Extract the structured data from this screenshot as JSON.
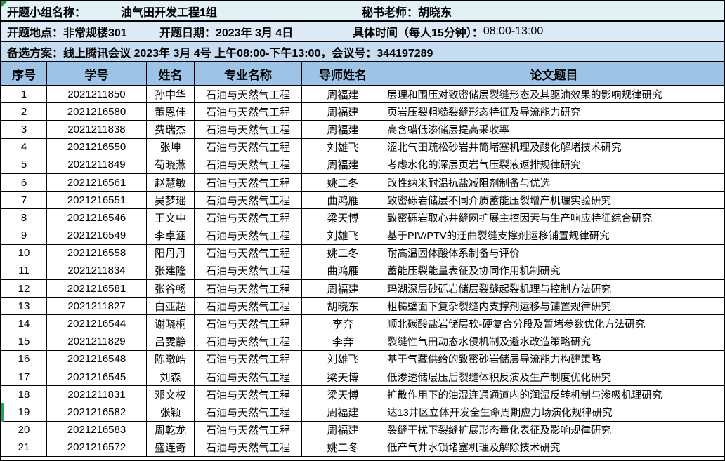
{
  "colors": {
    "header_bg": "#9dc3e6",
    "info_row1_bg": "#e1f1f6",
    "info_row2_bg": "#dce9f6",
    "info_row3_bg": "#c5dcf1",
    "selection_green": "#21a366",
    "corner_flag_green": "#1f9554",
    "grid_border": "#000000"
  },
  "info": {
    "row1": {
      "group_label": "开题小组名称：",
      "group_name": "油气田开发工程1组",
      "secretary": "秘书老师：胡晓东"
    },
    "row2": {
      "location": "开题地点：非常规楼301",
      "date": "开题日期：2023年 3月 4日",
      "time_label": "具体时间（每人15分钟）：",
      "time_value": "08:00-13:00"
    },
    "row3": {
      "backup_plan": "备选方案：线上腾讯会议   2023年 3月 4号 上午08:00-下午13:00，会议号：344197289"
    }
  },
  "table": {
    "columns": {
      "seq": "序号",
      "id": "学号",
      "name": "姓名",
      "major": "专业名称",
      "advisor": "导师姓名",
      "title": "论文题目"
    },
    "selected_row_seq": "19",
    "rows": [
      {
        "seq": "1",
        "id": "2021211850",
        "name": "孙中华",
        "major": "石油与天然气工程",
        "advisor": "周福建",
        "title": "层理和围压对致密储层裂缝形态及其驱油效果的影响规律研究"
      },
      {
        "seq": "2",
        "id": "2021216580",
        "name": "董恩佳",
        "major": "石油与天然气工程",
        "advisor": "周福建",
        "title": "页岩压裂粗糙裂缝形态特征及导流能力研究"
      },
      {
        "seq": "3",
        "id": "2021211838",
        "name": "费瑞杰",
        "major": "石油与天然气工程",
        "advisor": "周福建",
        "title": "高含蜡低渗储层提高采收率"
      },
      {
        "seq": "4",
        "id": "2021216550",
        "name": "张坤",
        "major": "石油与天然气工程",
        "advisor": "刘雄飞",
        "title": "涩北气田疏松砂岩井筒堵塞机理及酸化解堵技术研究"
      },
      {
        "seq": "5",
        "id": "2021211849",
        "name": "苟晓燕",
        "major": "石油与天然气工程",
        "advisor": "周福建",
        "title": "考虑水化的深层页岩气压裂液返排规律研究"
      },
      {
        "seq": "6",
        "id": "2021216561",
        "name": "赵慧敏",
        "major": "石油与天然气工程",
        "advisor": "姚二冬",
        "title": "改性纳米耐温抗盐减阻剂制备与优选"
      },
      {
        "seq": "7",
        "id": "2021216551",
        "name": "吴梦瑶",
        "major": "石油与天然气工程",
        "advisor": "曲鸿雁",
        "title": "致密砾岩储层不同介质蓄能压裂增产机理实验研究"
      },
      {
        "seq": "8",
        "id": "2021216546",
        "name": "王文中",
        "major": "石油与天然气工程",
        "advisor": "梁天博",
        "title": "致密砾岩取心井缝网扩展主控因素与生产响应特征综合研究"
      },
      {
        "seq": "9",
        "id": "2021216549",
        "name": "李卓涵",
        "major": "石油与天然气工程",
        "advisor": "刘雄飞",
        "title": "基于PIV/PTV的迂曲裂缝支撑剂运移铺置规律研究"
      },
      {
        "seq": "10",
        "id": "2021216558",
        "name": "阳丹丹",
        "major": "石油与天然气工程",
        "advisor": "姚二冬",
        "title": "耐高温固体酸体系制备与评价"
      },
      {
        "seq": "11",
        "id": "2021211834",
        "name": "张建隆",
        "major": "石油与天然气工程",
        "advisor": "曲鸿雁",
        "title": "蓄能压裂能量表征及协同作用机制研究"
      },
      {
        "seq": "12",
        "id": "2021216581",
        "name": "张谷畅",
        "major": "石油与天然气工程",
        "advisor": "周福建",
        "title": "玛湖深层砂砾岩储层裂缝起裂机理与控制方法研究"
      },
      {
        "seq": "13",
        "id": "2021211827",
        "name": "白亚超",
        "major": "石油与天然气工程",
        "advisor": "胡晓东",
        "title": "粗糙壁面下复杂裂缝内支撑剂运移与铺置规律研究"
      },
      {
        "seq": "14",
        "id": "2021216544",
        "name": "谢晓桐",
        "major": "石油与天然气工程",
        "advisor": "李奔",
        "title": "顺北碳酸盐岩储层软-硬复合分段及暂堵参数优化方法研究"
      },
      {
        "seq": "15",
        "id": "2021211829",
        "name": "吕雯静",
        "major": "石油与天然气工程",
        "advisor": "李奔",
        "title": "裂缝性气田动态水侵机制及避水改造策略研究"
      },
      {
        "seq": "16",
        "id": "2021216548",
        "name": "陈暾皓",
        "major": "石油与天然气工程",
        "advisor": "刘雄飞",
        "title": "基于气藏供给的致密砂岩储层导流能力构建策略"
      },
      {
        "seq": "17",
        "id": "2021216545",
        "name": "刘森",
        "major": "石油与天然气工程",
        "advisor": "梁天博",
        "title": "低渗透储层压后裂缝体积反演及生产制度优化研究"
      },
      {
        "seq": "18",
        "id": "2021211831",
        "name": "邓文权",
        "major": "石油与天然气工程",
        "advisor": "梁天博",
        "title": "扩散作用下的油湿连通通道内的润湿反转机制与渗吸机理研究"
      },
      {
        "seq": "19",
        "id": "2021216582",
        "name": "张颖",
        "major": "石油与天然气工程",
        "advisor": "周福建",
        "title": "达13井区立体开发全生命周期应力场演化规律研究"
      },
      {
        "seq": "20",
        "id": "2021216583",
        "name": "周乾龙",
        "major": "石油与天然气工程",
        "advisor": "周福建",
        "title": "裂缝干扰下裂缝扩展形态量化表征及影响规律研究"
      },
      {
        "seq": "21",
        "id": "2021216572",
        "name": "盛连奇",
        "major": "石油与天然气工程",
        "advisor": "姚二冬",
        "title": "低产气井水锁堵塞机理及解除技术研究"
      }
    ]
  }
}
